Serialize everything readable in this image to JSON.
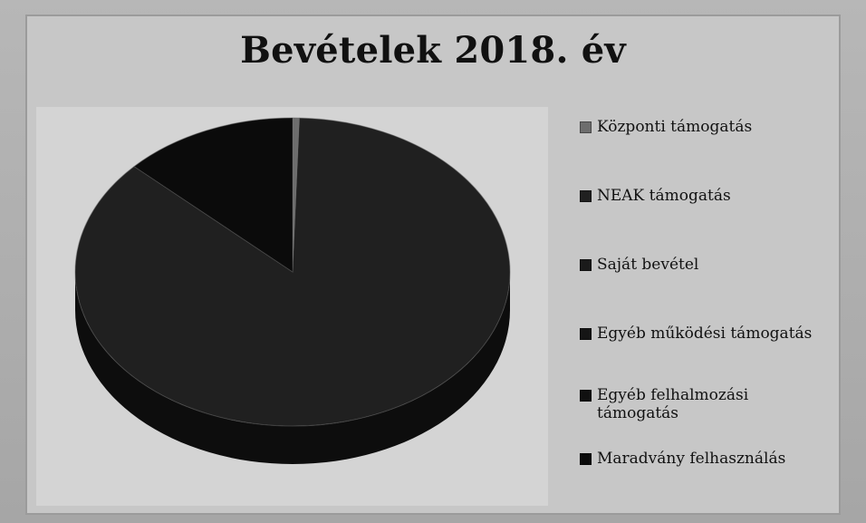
{
  "chart_data": {
    "type": "pie",
    "title": "Bevételek 2018. év",
    "categories": [
      "Központi támogatás",
      "NEAK támogatás",
      "Saját bevétel",
      "Egyéb működési támogatás",
      "Egyéb felhalmozási\ntámogatás",
      "Maradvány felhasználás"
    ],
    "values": [
      0.5,
      86.5,
      0,
      0,
      0,
      13
    ],
    "colors": [
      "#6d6d6d",
      "#202020",
      "#1a1a1a",
      "#151515",
      "#101010",
      "#0b0b0b"
    ],
    "legend_position": "right",
    "grid": false
  }
}
